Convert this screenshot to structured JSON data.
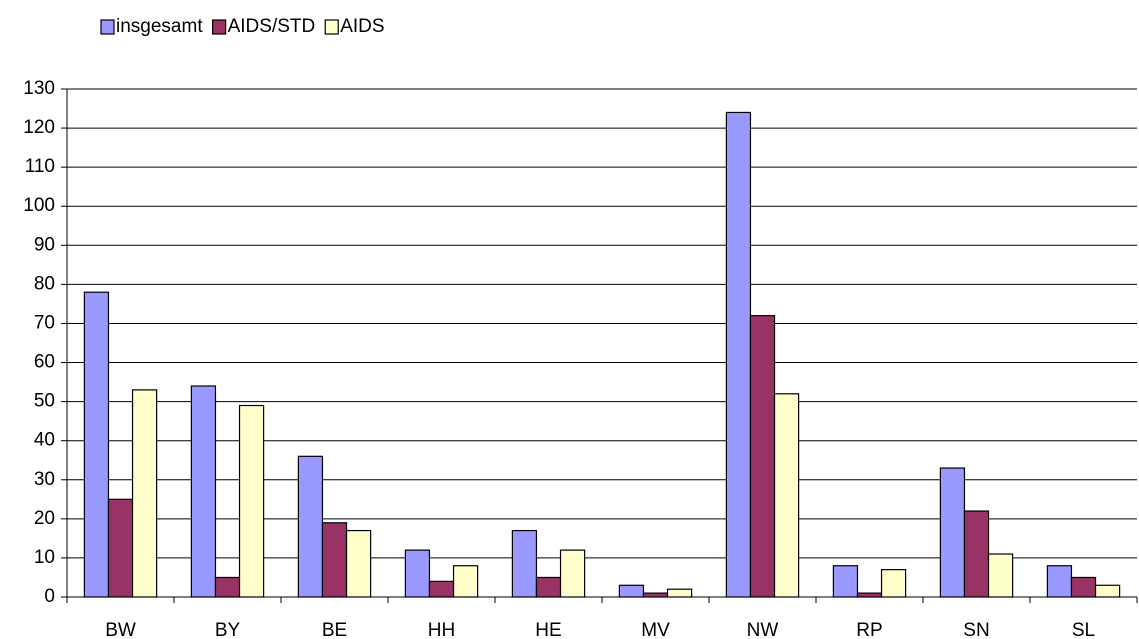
{
  "chart_data": {
    "type": "bar",
    "categories": [
      "BW",
      "BY",
      "BE",
      "HH",
      "HE",
      "MV",
      "NW",
      "RP",
      "SN",
      "SL"
    ],
    "series": [
      {
        "name": "insgesamt",
        "color": "#9999ff",
        "values": [
          78,
          54,
          36,
          12,
          17,
          3,
          124,
          8,
          33,
          8
        ]
      },
      {
        "name": "AIDS/STD",
        "color": "#993366",
        "values": [
          25,
          5,
          19,
          4,
          5,
          1,
          72,
          1,
          22,
          5
        ]
      },
      {
        "name": "AIDS",
        "color": "#ffffcc",
        "values": [
          53,
          49,
          17,
          8,
          12,
          2,
          52,
          7,
          11,
          3
        ]
      }
    ],
    "ylim": [
      0,
      130
    ],
    "yticks": [
      0,
      10,
      20,
      30,
      40,
      50,
      60,
      70,
      80,
      90,
      100,
      110,
      120,
      130
    ],
    "grid": true,
    "legend": "top-left"
  }
}
